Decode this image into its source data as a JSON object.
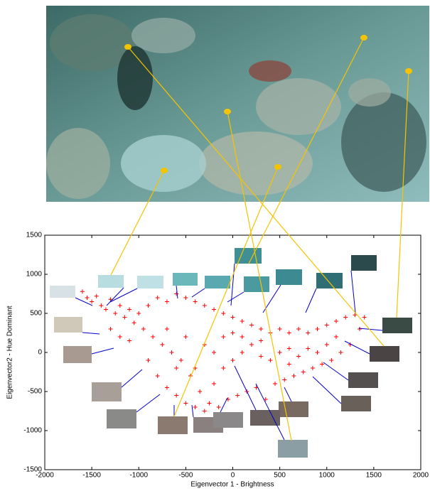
{
  "chart_data": {
    "type": "scatter",
    "xlabel": "Eigenvector 1 - Brightness",
    "ylabel": "Eigenvector2 - Hue Dominant",
    "color": "#ff0000",
    "xlim": [
      -2000,
      2000
    ],
    "xticks": [
      -2000,
      -1500,
      -1000,
      -500,
      0,
      500,
      1000,
      1500,
      2000
    ],
    "ylim": [
      -1500,
      1500
    ],
    "yticks": [
      -1500,
      -1000,
      -500,
      0,
      500,
      1000,
      1500
    ],
    "x": [
      -1600,
      -1550,
      -1500,
      -1450,
      -1400,
      -1350,
      -1300,
      -1250,
      -1200,
      -1150,
      -1100,
      -1050,
      -1000,
      -950,
      -900,
      -850,
      -800,
      -750,
      -700,
      -650,
      -600,
      -550,
      -500,
      -450,
      -400,
      -350,
      -300,
      -250,
      -200,
      -150,
      -100,
      -50,
      0,
      50,
      100,
      150,
      200,
      250,
      300,
      350,
      400,
      450,
      500,
      550,
      600,
      650,
      700,
      750,
      800,
      850,
      900,
      950,
      1000,
      1050,
      1100,
      1150,
      1200,
      1250,
      1300,
      1350,
      1400,
      -1300,
      -1100,
      -900,
      -800,
      -700,
      -600,
      -500,
      -400,
      -300,
      -200,
      -100,
      0,
      100,
      200,
      300,
      400,
      500,
      600,
      700,
      800,
      900,
      1000,
      1100,
      -700,
      -500,
      -300,
      -100,
      100,
      -400,
      -200,
      0,
      300,
      600,
      -600,
      -1200
    ],
    "y": [
      780,
      700,
      650,
      720,
      600,
      550,
      680,
      500,
      600,
      450,
      550,
      380,
      500,
      300,
      600,
      200,
      700,
      100,
      650,
      0,
      750,
      -100,
      700,
      -300,
      650,
      -500,
      600,
      -650,
      550,
      -700,
      500,
      -600,
      450,
      -550,
      400,
      -500,
      350,
      -450,
      300,
      -600,
      250,
      -400,
      300,
      -350,
      250,
      -300,
      300,
      -250,
      250,
      -200,
      300,
      -150,
      350,
      -100,
      400,
      0,
      450,
      100,
      480,
      300,
      450,
      300,
      150,
      -100,
      -300,
      -450,
      -550,
      -650,
      -700,
      -750,
      -400,
      -200,
      -100,
      0,
      100,
      -50,
      -100,
      0,
      50,
      -50,
      50,
      0,
      100,
      200,
      300,
      200,
      100,
      200,
      200,
      -200,
      0,
      250,
      150,
      -150,
      -200,
      200
    ]
  }
}
